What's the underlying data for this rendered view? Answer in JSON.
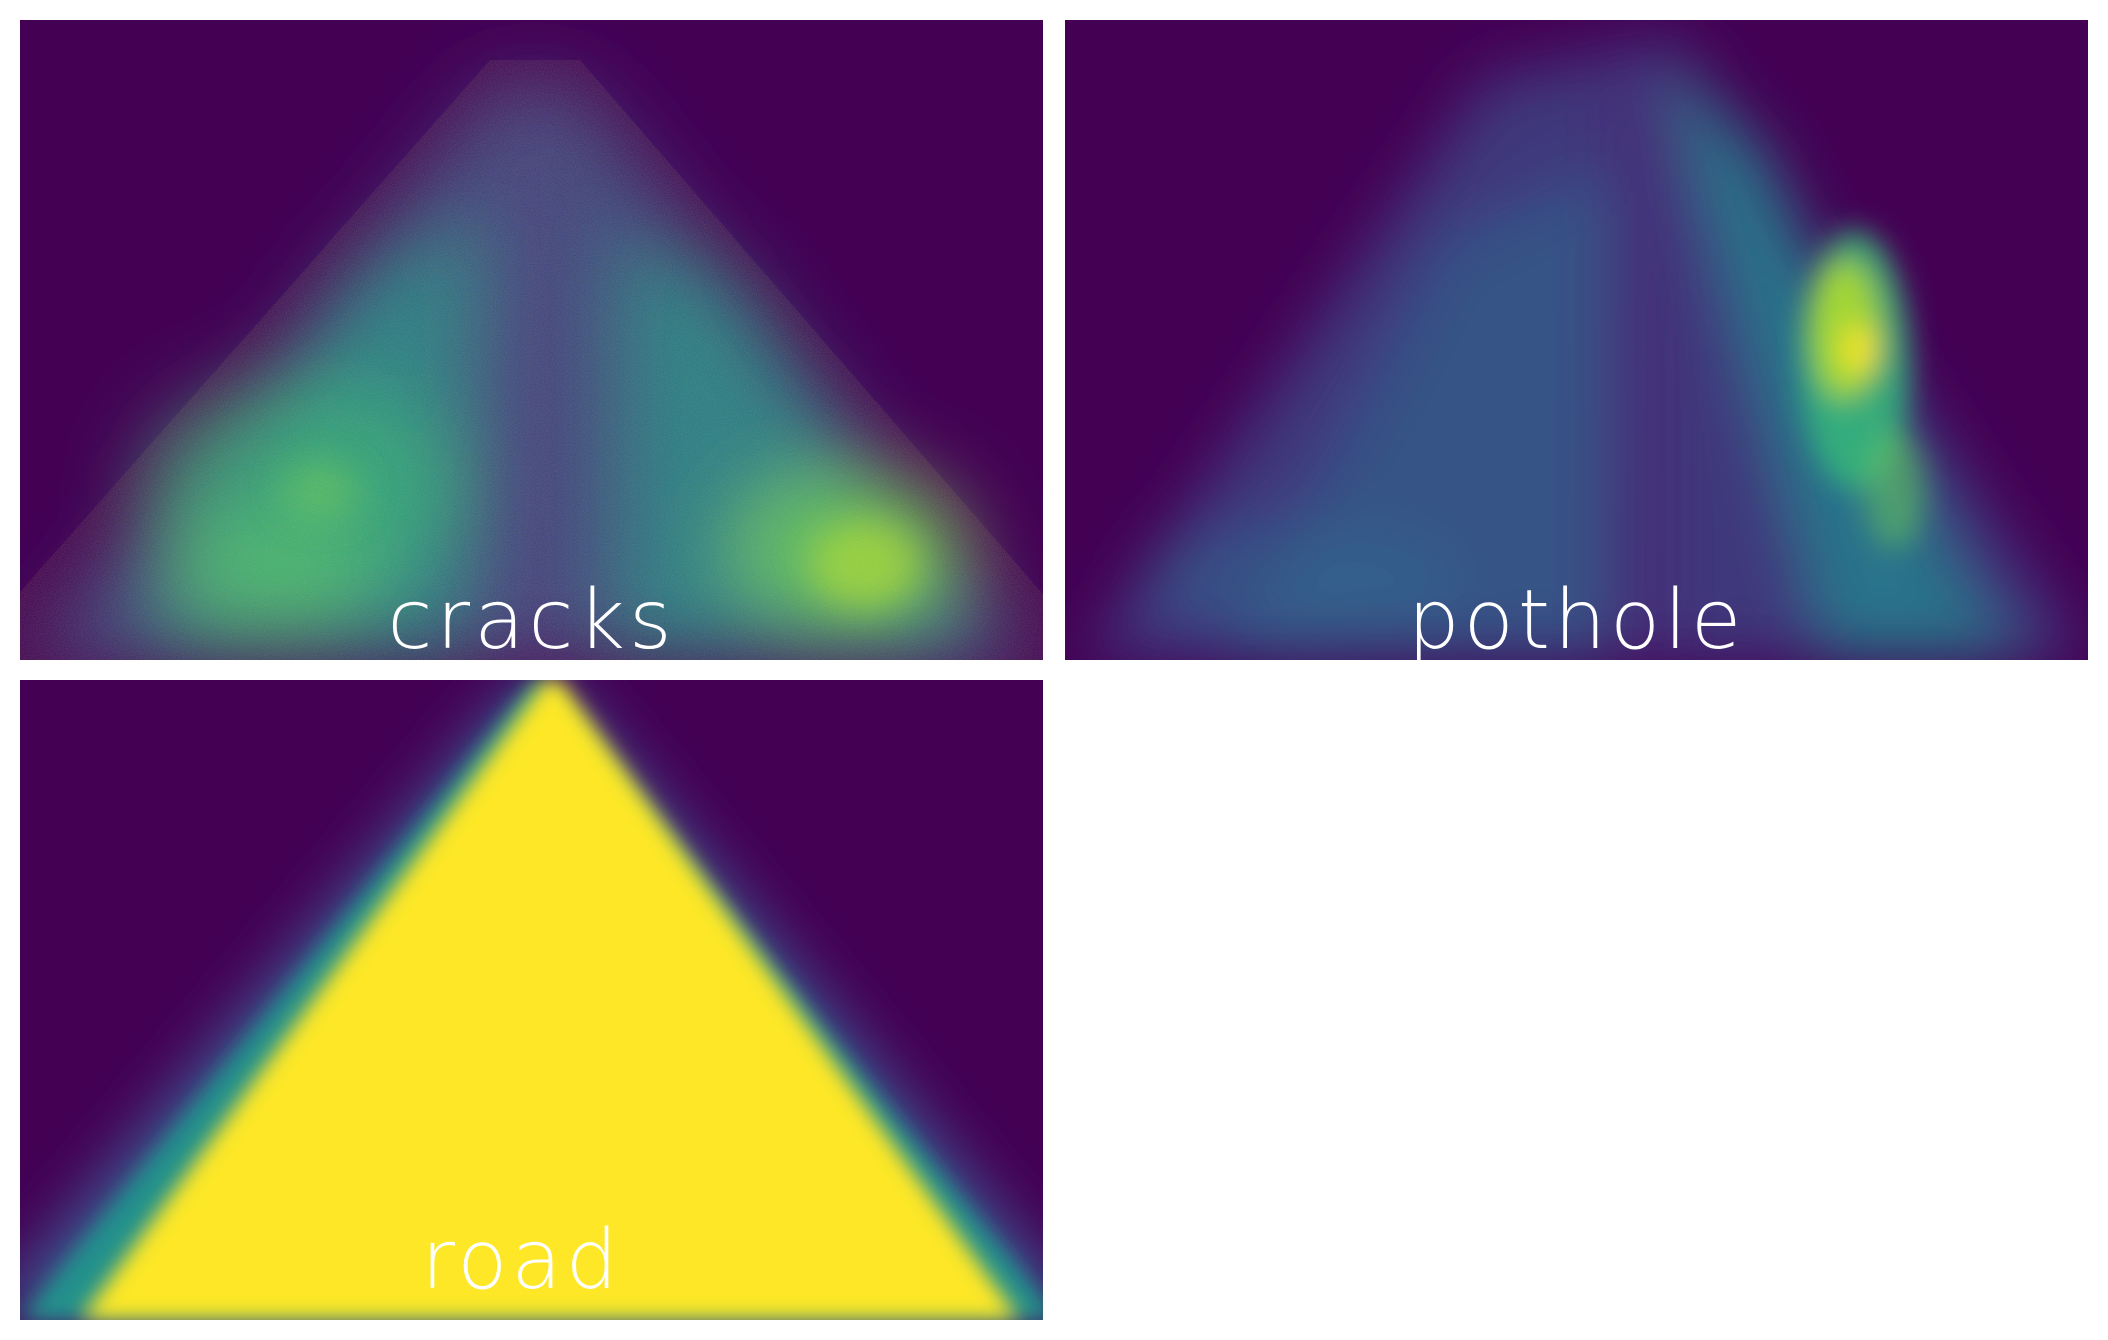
{
  "panels": [
    {
      "id": "cracks",
      "label": "cracks"
    },
    {
      "id": "pothole",
      "label": "pothole"
    },
    {
      "id": "road",
      "label": "road"
    }
  ],
  "colormap": "viridis",
  "colors": {
    "background": "#ffffff",
    "low": "#440154",
    "mid_low": "#3b528b",
    "mid": "#21918c",
    "mid_high": "#5ec962",
    "high": "#fde725",
    "label": "#ffffff"
  }
}
